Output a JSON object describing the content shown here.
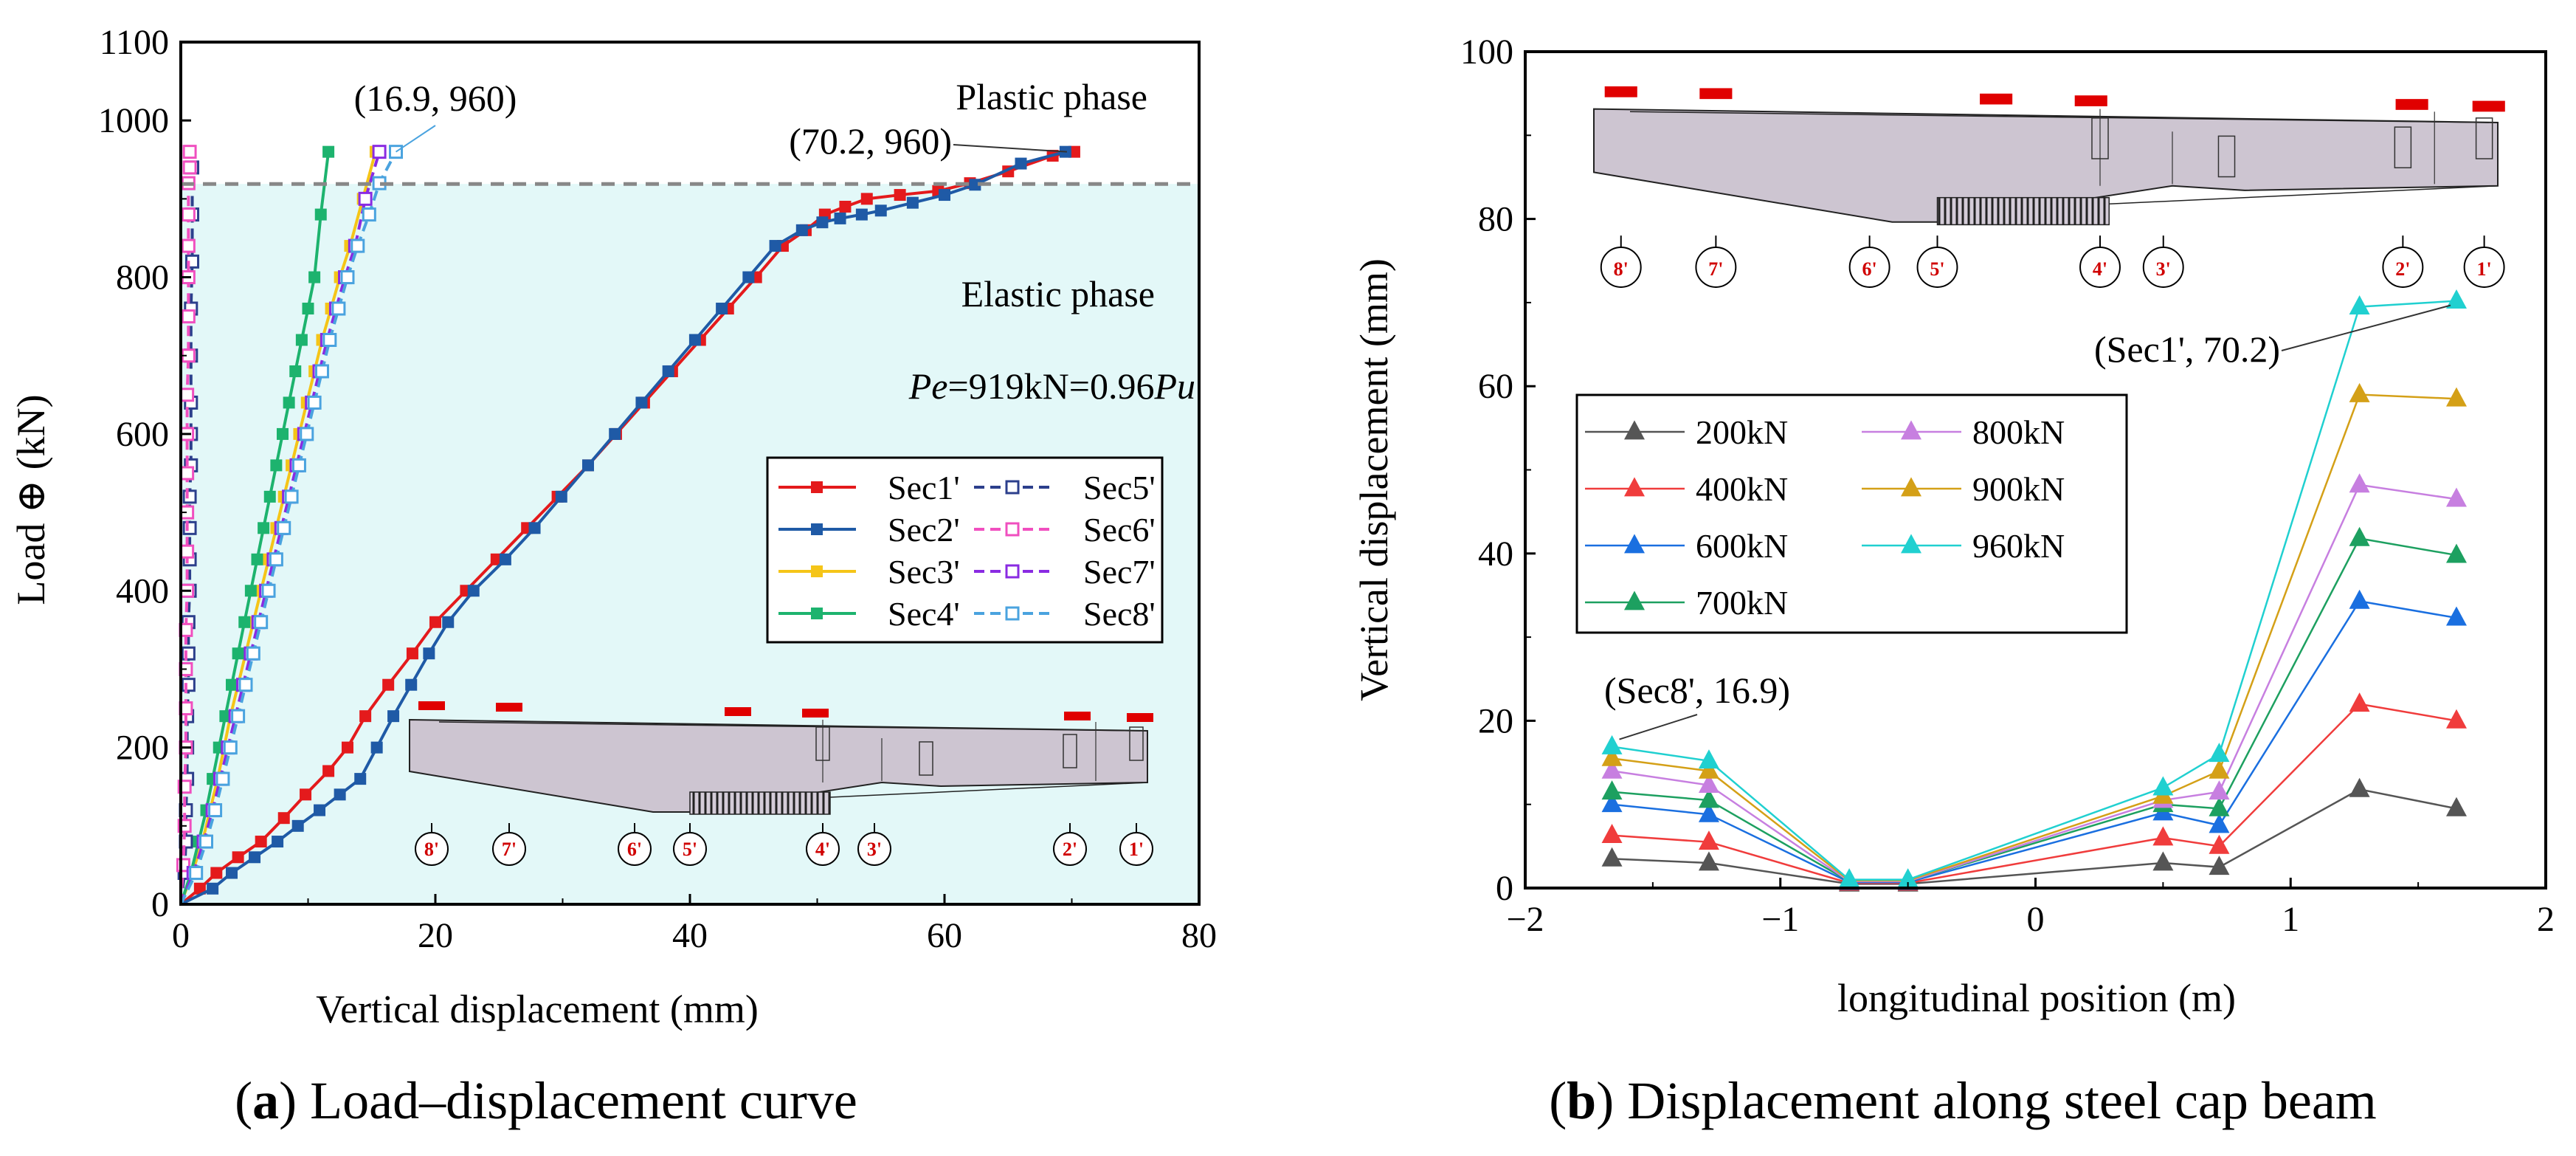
{
  "chart_data": [
    {
      "id": "a",
      "type": "line",
      "caption": {
        "letter": "a",
        "text": ") Load–displacement curve",
        "open": "("
      },
      "xlabel": "Vertical displacement (mm)",
      "ylabel": "Load ⊕ (kN)",
      "xlim": [
        0,
        80
      ],
      "ylim": [
        0,
        1100
      ],
      "xticks": [
        "0",
        "20",
        "40",
        "60",
        "80"
      ],
      "yticks": [
        "0",
        "200",
        "400",
        "600",
        "800",
        "1000",
        "1100"
      ],
      "ytick_values": [
        0,
        200,
        400,
        600,
        800,
        1000,
        1100
      ],
      "xtick_values": [
        0,
        20,
        40,
        60,
        80
      ],
      "elastic_limit": 919,
      "phase_labels": {
        "plastic": "Plastic phase",
        "elastic": "Elastic phase"
      },
      "pe_text": {
        "pe": "Pe",
        "mid": "=919kN=0.96",
        "pu": "Pu"
      },
      "annotations": [
        {
          "text": "(16.9, 960)",
          "x": 16.9,
          "y": 960
        },
        {
          "text": "(70.2, 960)",
          "x": 70.2,
          "y": 960
        }
      ],
      "legend_position": "center-right",
      "series": [
        {
          "name": "Sec1'",
          "color": "#e41a1c",
          "style": "solid",
          "marker": "square-filled",
          "x": [
            0,
            1.5,
            2.8,
            4.5,
            6.3,
            8.1,
            9.8,
            11.6,
            13.1,
            14.5,
            16.3,
            18.2,
            20.0,
            22.4,
            24.8,
            27.2,
            29.6,
            32.0,
            34.2,
            36.4,
            38.6,
            40.8,
            43.0,
            45.2,
            47.3,
            49.1,
            50.6,
            52.2,
            53.9,
            56.5,
            59.5,
            62.0,
            65.0,
            68.5,
            70.2
          ],
          "y": [
            0,
            20,
            40,
            60,
            80,
            110,
            140,
            170,
            200,
            240,
            280,
            320,
            360,
            400,
            440,
            480,
            520,
            560,
            600,
            640,
            680,
            720,
            760,
            800,
            840,
            860,
            880,
            890,
            900,
            905,
            910,
            920,
            935,
            955,
            960
          ]
        },
        {
          "name": "Sec2'",
          "color": "#1f5aa6",
          "style": "solid",
          "marker": "square-filled",
          "x": [
            0,
            2.5,
            4.0,
            5.8,
            7.6,
            9.2,
            10.9,
            12.5,
            14.1,
            15.4,
            16.7,
            18.1,
            19.5,
            21.0,
            23.0,
            25.5,
            27.8,
            29.9,
            32.0,
            34.1,
            36.2,
            38.3,
            40.4,
            42.5,
            44.6,
            46.7,
            48.8,
            50.4,
            51.8,
            53.5,
            55.0,
            57.5,
            60.0,
            62.4,
            66.0,
            69.5
          ],
          "y": [
            0,
            20,
            40,
            60,
            80,
            100,
            120,
            140,
            160,
            200,
            240,
            280,
            320,
            360,
            400,
            440,
            480,
            520,
            560,
            600,
            640,
            680,
            720,
            760,
            800,
            840,
            860,
            870,
            875,
            880,
            885,
            895,
            905,
            918,
            945,
            960
          ]
        },
        {
          "name": "Sec3'",
          "color": "#f5c518",
          "style": "solid",
          "marker": "square-filled",
          "x": [
            0,
            0.9,
            1.7,
            2.3,
            2.9,
            3.4,
            3.9,
            4.5,
            5.1,
            5.7,
            6.3,
            6.9,
            7.5,
            8.1,
            8.7,
            9.3,
            9.9,
            10.5,
            11.1,
            11.8,
            12.5,
            13.3,
            14.3,
            15.3
          ],
          "y": [
            0,
            40,
            80,
            120,
            160,
            200,
            240,
            280,
            320,
            360,
            400,
            440,
            480,
            520,
            560,
            600,
            640,
            680,
            720,
            760,
            800,
            840,
            900,
            960
          ]
        },
        {
          "name": "Sec4'",
          "color": "#1db36e",
          "style": "solid",
          "marker": "square-filled",
          "x": [
            0,
            0.8,
            1.4,
            2.0,
            2.5,
            3.0,
            3.5,
            4.0,
            4.5,
            5.0,
            5.5,
            6.0,
            6.5,
            7.0,
            7.5,
            8.0,
            8.5,
            9.0,
            9.5,
            10.0,
            10.5,
            11.0,
            11.6
          ],
          "y": [
            0,
            40,
            80,
            120,
            160,
            200,
            240,
            280,
            320,
            360,
            400,
            440,
            480,
            520,
            560,
            600,
            640,
            680,
            720,
            760,
            800,
            880,
            960
          ]
        },
        {
          "name": "Sec5'",
          "color": "#2c3f8c",
          "style": "dash",
          "marker": "square-open",
          "x": [
            0,
            0.3,
            0.4,
            0.4,
            0.5,
            0.5,
            0.5,
            0.6,
            0.6,
            0.6,
            0.7,
            0.7,
            0.7,
            0.7,
            0.8,
            0.8,
            0.8,
            0.8,
            0.8,
            0.9,
            0.9,
            0.9
          ],
          "y": [
            0,
            40,
            80,
            120,
            160,
            200,
            240,
            280,
            320,
            360,
            400,
            440,
            480,
            520,
            560,
            600,
            640,
            700,
            760,
            820,
            880,
            940
          ]
        },
        {
          "name": "Sec6'",
          "color": "#f04fbf",
          "style": "dash",
          "marker": "square-open",
          "x": [
            0,
            0.2,
            0.3,
            0.3,
            0.4,
            0.4,
            0.4,
            0.4,
            0.5,
            0.5,
            0.5,
            0.5,
            0.5,
            0.5,
            0.6,
            0.6,
            0.6,
            0.6,
            0.6,
            0.6,
            0.7,
            0.7
          ],
          "y": [
            0,
            50,
            100,
            150,
            200,
            250,
            300,
            350,
            400,
            450,
            500,
            550,
            600,
            650,
            700,
            750,
            800,
            840,
            880,
            920,
            940,
            960
          ]
        },
        {
          "name": "Sec7'",
          "color": "#8a2be2",
          "style": "dash",
          "marker": "square-open",
          "x": [
            0,
            1.0,
            1.8,
            2.5,
            3.1,
            3.7,
            4.3,
            4.9,
            5.5,
            6.1,
            6.7,
            7.3,
            7.9,
            8.5,
            9.1,
            9.7,
            10.3,
            10.9,
            11.5,
            12.2,
            12.9,
            13.7,
            14.5,
            15.6
          ],
          "y": [
            0,
            40,
            80,
            120,
            160,
            200,
            240,
            280,
            320,
            360,
            400,
            440,
            480,
            520,
            560,
            600,
            640,
            680,
            720,
            760,
            800,
            840,
            900,
            960
          ]
        },
        {
          "name": "Sec8'",
          "color": "#4aa3df",
          "style": "dash",
          "marker": "square-open",
          "x": [
            0,
            1.2,
            2.0,
            2.7,
            3.3,
            3.9,
            4.5,
            5.1,
            5.7,
            6.3,
            6.9,
            7.5,
            8.1,
            8.7,
            9.3,
            9.9,
            10.5,
            11.1,
            11.7,
            12.4,
            13.1,
            13.9,
            14.8,
            15.6,
            16.9
          ],
          "y": [
            0,
            40,
            80,
            120,
            160,
            200,
            240,
            280,
            320,
            360,
            400,
            440,
            480,
            520,
            560,
            600,
            640,
            680,
            720,
            760,
            800,
            840,
            880,
            920,
            960
          ]
        }
      ]
    },
    {
      "id": "b",
      "type": "line",
      "caption": {
        "letter": "b",
        "text": ") Displacement along steel cap beam",
        "open": "("
      },
      "xlabel": "longitudinal position (m)",
      "ylabel": "Vertical displacement (mm)",
      "xlim": [
        -2,
        2
      ],
      "ylim": [
        0,
        100
      ],
      "xticks": [
        "−2",
        "−1",
        "0",
        "1",
        "2"
      ],
      "xtick_values": [
        -2,
        -1,
        0,
        1,
        2
      ],
      "yticks": [
        "0",
        "20",
        "40",
        "60",
        "80",
        "100"
      ],
      "ytick_values": [
        0,
        20,
        40,
        60,
        80,
        100
      ],
      "annotations": [
        {
          "text": "(Sec8', 16.9)",
          "x": -1.66,
          "y": 16.9
        },
        {
          "text": "(Sec1', 70.2)",
          "x": 1.65,
          "y": 70.2
        }
      ],
      "legend_position": "center-left",
      "x": [
        -1.66,
        -1.28,
        -0.73,
        -0.5,
        0.5,
        0.72,
        1.27,
        1.65
      ],
      "series": [
        {
          "name": "200kN",
          "color": "#555555",
          "values": [
            3.5,
            3.0,
            0.5,
            0.5,
            3.0,
            2.5,
            11.8,
            9.5
          ]
        },
        {
          "name": "400kN",
          "color": "#f03c3c",
          "values": [
            6.3,
            5.5,
            0.6,
            0.6,
            6.0,
            5.0,
            22.0,
            20.0
          ]
        },
        {
          "name": "600kN",
          "color": "#1a6fe0",
          "values": [
            10.0,
            8.8,
            0.7,
            0.7,
            9.0,
            7.5,
            34.3,
            32.3
          ]
        },
        {
          "name": "700kN",
          "color": "#1da060",
          "values": [
            11.5,
            10.5,
            0.8,
            0.8,
            10.0,
            9.5,
            41.8,
            39.8
          ]
        },
        {
          "name": "800kN",
          "color": "#c77fe0",
          "values": [
            14.0,
            12.3,
            0.8,
            0.8,
            10.5,
            11.5,
            48.2,
            46.5
          ]
        },
        {
          "name": "900kN",
          "color": "#d4a017",
          "values": [
            15.5,
            14.0,
            0.9,
            0.9,
            11.0,
            14.0,
            59.0,
            58.5
          ]
        },
        {
          "name": "960kN",
          "color": "#20d0d0",
          "values": [
            16.9,
            15.2,
            1.0,
            1.0,
            12.0,
            16.0,
            69.5,
            70.2
          ]
        }
      ]
    }
  ],
  "beam_labels": [
    "8'",
    "7'",
    "6'",
    "5'",
    "4'",
    "3'",
    "2'",
    "1'"
  ]
}
